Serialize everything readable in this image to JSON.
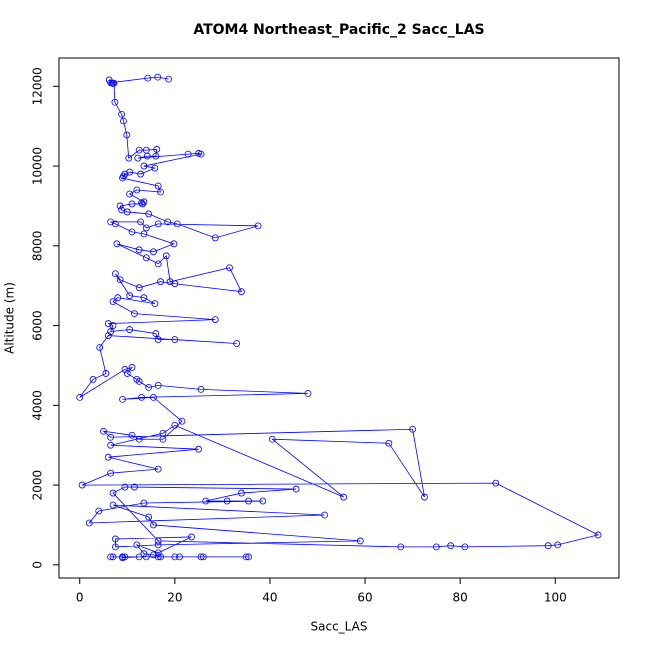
{
  "chart_data": {
    "type": "line",
    "title": "ATOM4 Northeast_Pacific_2 Sacc_LAS",
    "x_label": "Sacc_LAS",
    "y_label": "Altitude (m)",
    "xlim": [
      -4.36,
      113.4
    ],
    "ylim": [
      -330,
      12710
    ],
    "xticks": [
      0,
      20,
      40,
      60,
      80,
      100
    ],
    "yticks": [
      0,
      2000,
      4000,
      6000,
      8000,
      10000,
      12000
    ],
    "markers": true,
    "grid": false,
    "x": [
      18.7,
      16.4,
      14.3,
      6.5,
      6.8,
      7.0,
      6.2,
      7.2,
      7.4,
      8.8,
      9.2,
      9.9,
      10.3,
      12.5,
      14.0,
      16.2,
      16.0,
      14.2,
      12.2,
      22.8,
      25.0,
      25.5,
      13.5,
      15.8,
      12.8,
      10.5,
      9.2,
      9.5,
      9.0,
      16.5,
      17.0,
      12.0,
      10.5,
      13.5,
      13.0,
      13.2,
      11.0,
      8.5,
      8.8,
      10.0,
      14.5,
      18.5,
      20.5,
      28.5,
      37.5,
      16.5,
      14.0,
      12.8,
      6.5,
      7.5,
      11.0,
      13.5,
      19.8,
      15.5,
      12.5,
      7.8,
      14.0,
      16.5,
      18.2,
      19.0,
      31.5,
      34.0,
      20.0,
      17.0,
      12.5,
      8.5,
      7.5,
      10.5,
      13.5,
      15.8,
      8.0,
      7.0,
      11.5,
      28.5,
      6.0,
      7.0,
      6.5,
      10.5,
      16.0,
      16.5,
      20.0,
      33.0,
      6.0,
      4.2,
      5.5,
      2.8,
      0.0,
      9.5,
      11.0,
      10.0,
      12.0,
      12.5,
      14.5,
      16.5,
      25.5,
      48.0,
      13.0,
      9.0,
      15.5,
      21.5,
      17.5,
      12.5,
      11.0,
      5.0,
      6.5,
      70.0,
      72.5,
      65.0,
      40.5,
      55.5,
      20.0,
      17.5,
      6.5,
      25.0,
      6.0,
      16.5,
      6.5,
      0.5,
      87.5,
      109.0,
      100.5,
      98.5,
      81.0,
      78.0,
      75.0,
      67.5,
      16.5,
      7.0,
      9.5,
      11.5,
      45.5,
      34.0,
      26.5,
      31.0,
      35.5,
      38.5,
      13.5,
      4.0,
      2.0,
      51.5,
      7.0,
      14.5,
      15.5,
      59.0,
      16.5,
      7.5,
      7.5,
      23.5,
      16.5,
      12.0,
      13.5,
      15.5,
      17.0,
      20.0,
      21.0,
      25.5,
      26.0,
      35.0,
      35.5,
      7.0,
      6.5,
      9.0,
      9.5,
      16.5,
      14.0,
      12.5,
      9.0
    ],
    "series": [
      {
        "color": "#0000ff",
        "values": [
          12180,
          12230,
          12205,
          12090,
          12080,
          12070,
          12160,
          12080,
          11600,
          11300,
          11130,
          10780,
          10200,
          10400,
          10400,
          10420,
          10250,
          10250,
          10200,
          10300,
          10320,
          10300,
          10000,
          9950,
          9800,
          9850,
          9750,
          9800,
          9700,
          9500,
          9350,
          9400,
          9300,
          9100,
          9080,
          9050,
          9050,
          9000,
          8900,
          8850,
          8800,
          8600,
          8550,
          8200,
          8500,
          8550,
          8450,
          8600,
          8600,
          8550,
          8350,
          8300,
          8050,
          7850,
          7900,
          8050,
          7700,
          7550,
          7750,
          7100,
          7450,
          6850,
          7050,
          7100,
          6950,
          7150,
          7300,
          6750,
          6700,
          6550,
          6700,
          6600,
          6300,
          6150,
          6050,
          6000,
          5850,
          5900,
          5800,
          5650,
          5650,
          5550,
          5750,
          5450,
          4800,
          4650,
          4200,
          4900,
          4950,
          4800,
          4650,
          4600,
          4450,
          4500,
          4400,
          4300,
          4200,
          4150,
          4200,
          3600,
          3150,
          3150,
          3250,
          3350,
          3200,
          3400,
          1700,
          3050,
          3150,
          1700,
          3500,
          3300,
          3000,
          2900,
          2700,
          2400,
          2300,
          2000,
          2050,
          750,
          500,
          480,
          450,
          480,
          450,
          450,
          600,
          1800,
          1950,
          1950,
          1900,
          1800,
          1600,
          1600,
          1600,
          1600,
          1550,
          1350,
          1050,
          1250,
          1500,
          1200,
          1000,
          600,
          500,
          450,
          650,
          700,
          300,
          500,
          280,
          250,
          200,
          200,
          200,
          200,
          200,
          200,
          200,
          200,
          200,
          200,
          200,
          200,
          200,
          200,
          180
        ]
      }
    ]
  }
}
